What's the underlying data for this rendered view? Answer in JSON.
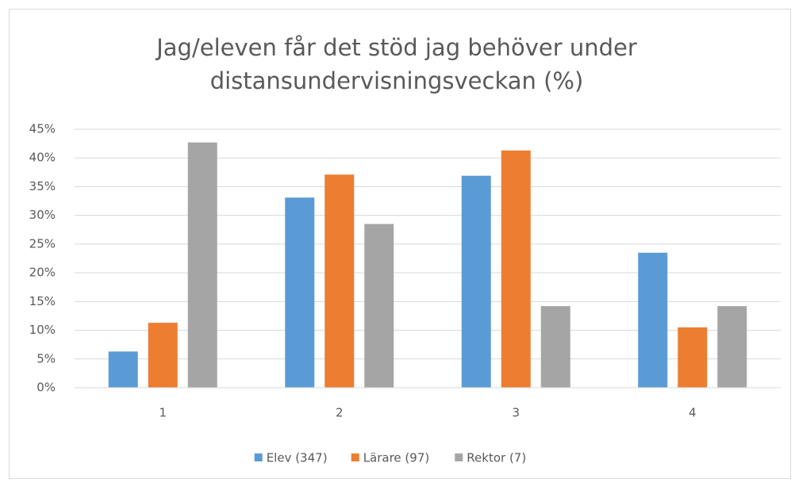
{
  "chart_data": {
    "type": "bar",
    "title": [
      "Jag/eleven får det stöd jag behöver under",
      "distansundervisningsveckan (%)"
    ],
    "categories": [
      "1",
      "2",
      "3",
      "4"
    ],
    "series": [
      {
        "name": "Elev (347)",
        "color": "#5b9bd5",
        "values": [
          6.3,
          33.1,
          36.9,
          23.5
        ]
      },
      {
        "name": "Lärare (97)",
        "color": "#ed7d31",
        "values": [
          11.3,
          37.1,
          41.3,
          10.5
        ]
      },
      {
        "name": "Rektor (7)",
        "color": "#a5a5a5",
        "values": [
          42.7,
          28.5,
          14.2,
          14.2
        ]
      }
    ],
    "ylim": [
      0,
      45
    ],
    "yticks": [
      {
        "value": 0,
        "label": "0%"
      },
      {
        "value": 5,
        "label": "5%"
      },
      {
        "value": 10,
        "label": "10%"
      },
      {
        "value": 15,
        "label": "15%"
      },
      {
        "value": 20,
        "label": "20%"
      },
      {
        "value": 25,
        "label": "25%"
      },
      {
        "value": 30,
        "label": "30%"
      },
      {
        "value": 35,
        "label": "35%"
      },
      {
        "value": 40,
        "label": "40%"
      },
      {
        "value": 45,
        "label": "45%"
      }
    ],
    "grid": true,
    "legend": "bottom"
  }
}
